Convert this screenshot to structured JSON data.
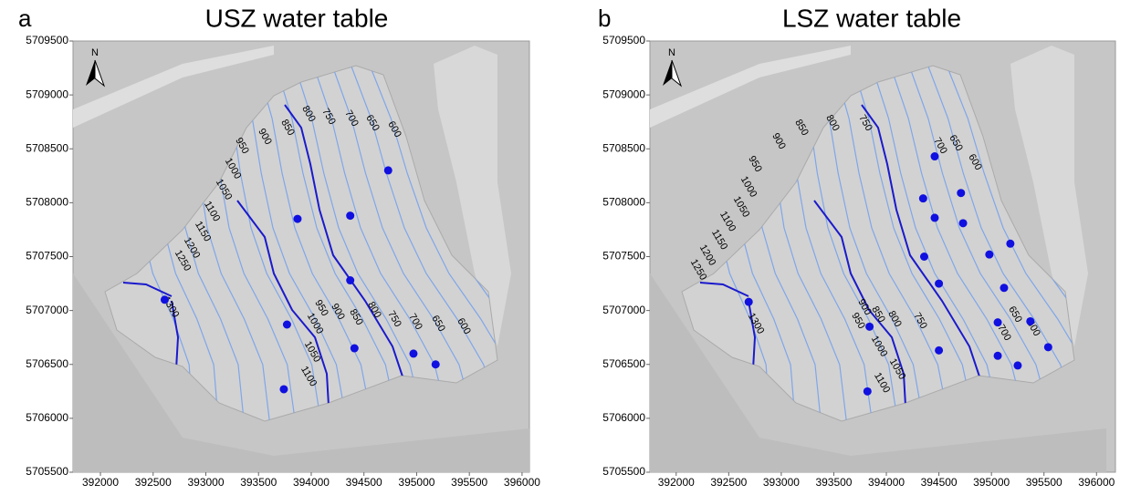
{
  "chart_data": [
    {
      "type": "scatter",
      "panel_label": "a",
      "title": "USZ water table",
      "north_label": "N",
      "xlim": [
        391740,
        396070
      ],
      "ylim": [
        5705500,
        5709500
      ],
      "xticks": [
        392000,
        392500,
        393000,
        393500,
        394000,
        394500,
        395000,
        395500,
        396000
      ],
      "yticks": [
        5705500,
        5706000,
        5706500,
        5707000,
        5707500,
        5708000,
        5708500,
        5709000,
        5709500
      ],
      "x": [
        394730,
        393870,
        394370,
        394370,
        393770,
        394410,
        394970,
        395180,
        393740,
        392610
      ],
      "y": [
        5708300,
        5707850,
        5707880,
        5707280,
        5706870,
        5706650,
        5706600,
        5706500,
        5706270,
        5707100
      ],
      "color": "#1010e0",
      "contour_labels": [
        600,
        650,
        700,
        750,
        800,
        850,
        900,
        950,
        1000,
        1050,
        1100,
        1150,
        1200,
        1250,
        1300,
        950,
        900,
        850,
        800,
        750,
        700,
        650,
        600,
        1000,
        1050,
        1100
      ]
    },
    {
      "type": "scatter",
      "panel_label": "b",
      "title": "LSZ water table",
      "north_label": "N",
      "xlim": [
        391750,
        396180
      ],
      "ylim": [
        5705500,
        5709500
      ],
      "xticks": [
        392000,
        392500,
        393000,
        393500,
        394000,
        394500,
        395000,
        395500,
        396000
      ],
      "yticks": [
        5705500,
        5706000,
        5706500,
        5707000,
        5707500,
        5708000,
        5708500,
        5709000,
        5709500
      ],
      "x": [
        394460,
        394350,
        394710,
        394460,
        394730,
        394360,
        394980,
        395180,
        394500,
        395120,
        395060,
        395370,
        395540,
        395060,
        395250,
        394500,
        393840,
        393820,
        392690
      ],
      "y": [
        5708430,
        5708040,
        5708090,
        5707860,
        5707810,
        5707500,
        5707520,
        5707620,
        5707250,
        5707210,
        5706890,
        5706900,
        5706660,
        5706580,
        5706490,
        5706630,
        5706850,
        5706250,
        5707080
      ],
      "color": "#1010e0",
      "contour_labels": [
        600,
        650,
        700,
        750,
        800,
        850,
        900,
        950,
        1000,
        1050,
        1100,
        1150,
        1200,
        1250,
        1300,
        900,
        950,
        850,
        800,
        750,
        700,
        650,
        600,
        1000,
        1050,
        1100
      ]
    }
  ]
}
